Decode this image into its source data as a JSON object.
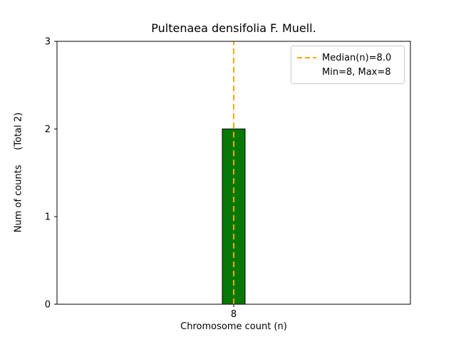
{
  "chart_data": {
    "type": "bar",
    "title": "Pultenaea densifolia F. Muell.",
    "xlabel": "Chromosome count (n)",
    "ylabel": "Num of counts     (Total 2)",
    "categories": [
      "8"
    ],
    "values": [
      2
    ],
    "total_counts": 2,
    "ylim": [
      0,
      3
    ],
    "yticks": [
      0,
      1,
      2,
      3
    ],
    "bar_color": "#067806",
    "bar_edge_color": "#000000",
    "median_line": {
      "value": 8.0,
      "color": "#ffa500",
      "style": "dashed"
    },
    "legend": {
      "position": "upper right",
      "entries": [
        {
          "label": "Median(n)=8.0",
          "sample": "dashed-orange-line"
        },
        {
          "label": "Min=8, Max=8",
          "sample": "none"
        }
      ]
    },
    "grid": false
  }
}
